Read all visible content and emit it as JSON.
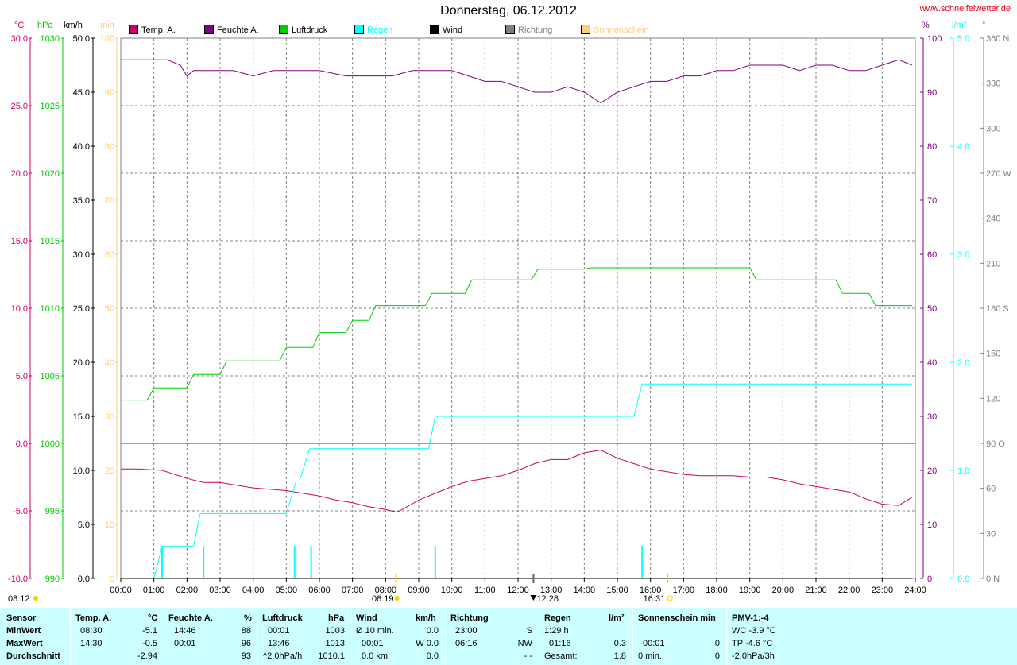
{
  "title": "Donnerstag, 06.12.2012",
  "site": "www.schneifelwetter.de",
  "colors": {
    "temp": "#cc0066",
    "humidity": "#800080",
    "pressure": "#00cc00",
    "rain": "#00ffff",
    "wind": "#000000",
    "direction": "#808080",
    "sun": "#ffcc80",
    "footer_bg": "#ccffff"
  },
  "legend": [
    {
      "label": "Temp. A.",
      "color": "#cc0066"
    },
    {
      "label": "Feuchte A.",
      "color": "#800080"
    },
    {
      "label": "Luftdruck",
      "color": "#00cc00"
    },
    {
      "label": "Regen",
      "color": "#00ffff"
    },
    {
      "label": "Wind",
      "color": "#000000"
    },
    {
      "label": "Richtung",
      "color": "#808080"
    },
    {
      "label": "Sonnenschein",
      "color": "#ffcc80"
    }
  ],
  "units": {
    "temp": "°C",
    "pressure": "hPa",
    "wind": "km/h",
    "sun": "min",
    "humidity": "%",
    "rain": "l/m²",
    "direction": "°"
  },
  "chart_data": {
    "type": "line",
    "x_ticks": [
      "00:00",
      "01:00",
      "02:00",
      "03:00",
      "04:00",
      "05:00",
      "06:00",
      "07:00",
      "08:00",
      "09:00",
      "10:00",
      "11:00",
      "12:00",
      "13:00",
      "14:00",
      "15:00",
      "16:00",
      "17:00",
      "18:00",
      "19:00",
      "20:00",
      "21:00",
      "22:00",
      "23:00",
      "24:00"
    ],
    "axes": {
      "temp": {
        "ticks": [
          "30.0",
          "25.0",
          "20.0",
          "15.0",
          "10.0",
          "5.0",
          "0.0",
          "-5.0",
          "-10.0"
        ],
        "range": [
          -10,
          30
        ]
      },
      "pressure": {
        "ticks": [
          "1030",
          "1025",
          "1020",
          "1015",
          "1010",
          "1005",
          "1000",
          "995",
          "990"
        ],
        "range": [
          990,
          1030
        ]
      },
      "wind": {
        "ticks": [
          "50.0",
          "45.0",
          "40.0",
          "35.0",
          "30.0",
          "25.0",
          "20.0",
          "15.0",
          "10.0",
          "5.0",
          "0.0"
        ],
        "range": [
          0,
          50
        ]
      },
      "sun": {
        "ticks": [
          "100",
          "90",
          "80",
          "70",
          "60",
          "50",
          "40",
          "30",
          "20",
          "10",
          "0"
        ],
        "range": [
          0,
          100
        ]
      },
      "humidity": {
        "ticks": [
          "100",
          "90",
          "80",
          "70",
          "60",
          "50",
          "40",
          "30",
          "20",
          "10",
          "0"
        ],
        "range": [
          0,
          100
        ]
      },
      "rain": {
        "ticks": [
          "5.0",
          "4.0",
          "3.0",
          "2.0",
          "1.0",
          "0.0"
        ],
        "range": [
          0,
          5
        ]
      },
      "direction": {
        "ticks": [
          "360 N",
          "330",
          "300",
          "270 W",
          "240",
          "210",
          "180 S",
          "150",
          "120",
          "90 O",
          "60",
          "30",
          "0 N"
        ],
        "range": [
          0,
          360
        ]
      }
    },
    "series": [
      {
        "name": "Temp. A.",
        "axis": "temp",
        "color": "#cc0066",
        "x": [
          0,
          0.5,
          1.25,
          2,
          2.5,
          3,
          3.5,
          4,
          4.5,
          5,
          5.5,
          6,
          6.5,
          7,
          7.5,
          8,
          8.33,
          8.5,
          9,
          9.5,
          10,
          10.5,
          11,
          11.5,
          12,
          12.5,
          13,
          13.5,
          14,
          14.5,
          15,
          15.5,
          16,
          16.5,
          17,
          17.5,
          18,
          18.5,
          19,
          19.5,
          20,
          20.5,
          21,
          21.5,
          22,
          22.5,
          23,
          23.5,
          23.9
        ],
        "values": [
          -1.9,
          -1.9,
          -2.0,
          -2.6,
          -2.9,
          -2.9,
          -3.1,
          -3.3,
          -3.4,
          -3.5,
          -3.7,
          -3.9,
          -4.2,
          -4.4,
          -4.7,
          -4.9,
          -5.1,
          -4.9,
          -4.2,
          -3.7,
          -3.2,
          -2.8,
          -2.6,
          -2.4,
          -2.0,
          -1.5,
          -1.2,
          -1.2,
          -0.7,
          -0.5,
          -1.1,
          -1.5,
          -1.9,
          -2.1,
          -2.3,
          -2.4,
          -2.4,
          -2.4,
          -2.5,
          -2.5,
          -2.7,
          -3.0,
          -3.2,
          -3.4,
          -3.6,
          -4.1,
          -4.5,
          -4.6,
          -4.0
        ]
      },
      {
        "name": "Feuchte A.",
        "axis": "humidity",
        "color": "#800080",
        "x": [
          0,
          1.4,
          1.8,
          2,
          2.2,
          3,
          3.4,
          4,
          4.6,
          5,
          5.4,
          6,
          6.8,
          7.6,
          8.2,
          8.8,
          9.4,
          10,
          10.5,
          11,
          11.5,
          12,
          12.5,
          13,
          13.5,
          14,
          14.5,
          15,
          15.5,
          16,
          16.5,
          17,
          17.5,
          18,
          18.5,
          19,
          19.5,
          20,
          20.5,
          21,
          21.5,
          22,
          22.5,
          23,
          23.5,
          23.9
        ],
        "values": [
          96,
          96,
          95,
          93,
          94,
          94,
          94,
          93,
          94,
          94,
          94,
          94,
          93,
          93,
          93,
          94,
          94,
          94,
          93,
          92,
          92,
          91,
          90,
          90,
          91,
          90,
          88,
          90,
          91,
          92,
          92,
          93,
          93,
          94,
          94,
          95,
          95,
          95,
          94,
          95,
          95,
          94,
          94,
          95,
          96,
          95
        ]
      },
      {
        "name": "Luftdruck",
        "axis": "pressure",
        "color": "#00cc00",
        "x": [
          0,
          0.8,
          1,
          2,
          2.2,
          3,
          3.2,
          4.8,
          5,
          5.8,
          6,
          6.8,
          7,
          7.5,
          7.7,
          9.2,
          9.4,
          10.4,
          10.6,
          12.4,
          12.6,
          14,
          14.2,
          19,
          19.2,
          21.6,
          21.8,
          22.6,
          22.8,
          23.9
        ],
        "values": [
          1003.2,
          1003.2,
          1004.1,
          1004.1,
          1005.1,
          1005.1,
          1006.1,
          1006.1,
          1007.1,
          1007.1,
          1008.2,
          1008.2,
          1009.1,
          1009.1,
          1010.2,
          1010.2,
          1011.1,
          1011.1,
          1012.1,
          1012.1,
          1012.9,
          1012.9,
          1013.0,
          1013.0,
          1012.1,
          1012.1,
          1011.1,
          1011.1,
          1010.2,
          1010.2
        ]
      },
      {
        "name": "Regen",
        "axis": "rain",
        "color": "#00ffff",
        "x": [
          0,
          1.0,
          1.25,
          2.2,
          2.4,
          5.0,
          5.3,
          5.4,
          5.7,
          9.3,
          9.5,
          15.5,
          15.75,
          23.9
        ],
        "values": [
          0,
          0,
          0.3,
          0.3,
          0.6,
          0.6,
          0.9,
          0.9,
          1.2,
          1.2,
          1.5,
          1.5,
          1.8,
          1.8
        ]
      },
      {
        "name": "Regen (Intervall)",
        "axis": "rain",
        "color": "#00ffff",
        "kind": "bars",
        "x": [
          1.25,
          2.5,
          5.25,
          5.75,
          9.5,
          15.75
        ],
        "values": [
          0.3,
          0.3,
          0.3,
          0.3,
          0.3,
          0.3
        ]
      },
      {
        "name": "Wind",
        "axis": "wind",
        "color": "#000000",
        "x": [
          0,
          23.9
        ],
        "values": [
          0,
          0
        ]
      }
    ],
    "markers": {
      "sunrise": {
        "time": "08:19",
        "label": "08:19"
      },
      "noon": {
        "time": "12:28",
        "label": "12:28"
      },
      "sunset": {
        "time": "16:31",
        "label": "16:31"
      },
      "left_label": "08:12"
    },
    "grid": true
  },
  "footer": {
    "sensor": {
      "header": "Sensor",
      "rows": [
        "MinWert",
        "MaxWert",
        "Durchschnitt"
      ]
    },
    "temp": {
      "header": "Temp. A.",
      "unit": "°C",
      "rows": [
        [
          "08:30",
          "-5.1"
        ],
        [
          "14:30",
          "-0.5"
        ],
        [
          "",
          "-2.94"
        ]
      ]
    },
    "humidity": {
      "header": "Feuchte A.",
      "unit": "%",
      "rows": [
        [
          "14:46",
          "88"
        ],
        [
          "00:01",
          "96"
        ],
        [
          "",
          "93"
        ]
      ]
    },
    "pressure": {
      "header": "Luftdruck",
      "unit": "hPa",
      "rows": [
        [
          "00:01",
          "1003"
        ],
        [
          "13:46",
          "1013"
        ],
        [
          "^2.0hPa/h",
          "1010.1"
        ]
      ]
    },
    "wind": {
      "header": "Wind",
      "unit": "km/h",
      "rows": [
        [
          "Ø 10 min.",
          "0.0"
        ],
        [
          "00:01",
          "W 0.0"
        ],
        [
          "0.0 km",
          "0.0"
        ]
      ]
    },
    "direction": {
      "header": "Richtung",
      "rows": [
        [
          "23:00",
          "S"
        ],
        [
          "06:16",
          "NW"
        ],
        [
          "",
          "- -"
        ]
      ]
    },
    "rain": {
      "header": "Regen",
      "unit": "l/m²",
      "rows": [
        [
          "1:29 h",
          ""
        ],
        [
          "01:16",
          "0.3"
        ],
        [
          "Gesamt:",
          "1.8"
        ]
      ]
    },
    "sun": {
      "header": "Sonnenschein min",
      "rows": [
        [
          "00:01",
          "0"
        ],
        [
          "0 min.",
          "0"
        ]
      ]
    },
    "pmv": {
      "header": "PMV-1:-4",
      "rows": [
        "WC -3.9 °C",
        "TP -4.6 °C",
        "-2.0hPa/3h"
      ]
    }
  }
}
